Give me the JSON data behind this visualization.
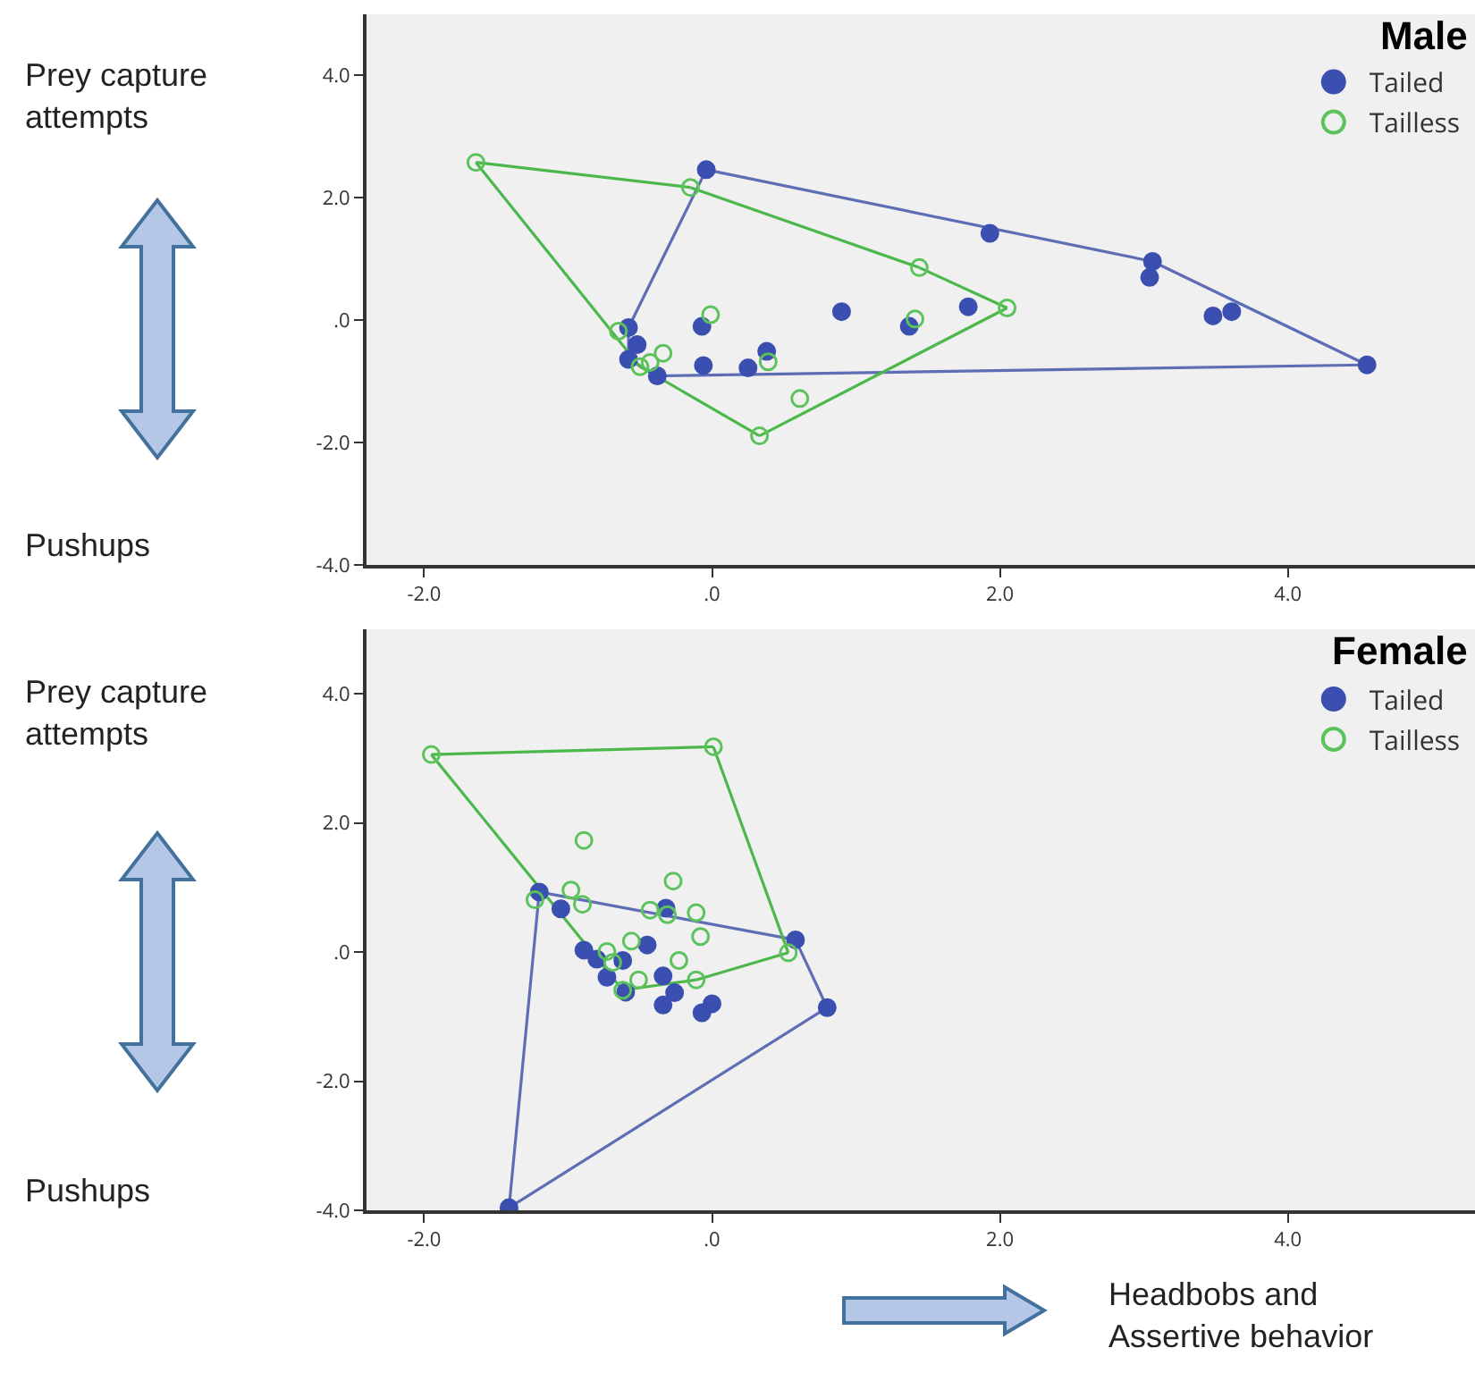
{
  "chart_data": [
    {
      "type": "scatter",
      "title": "Male",
      "annotations": [
        "Prey capture attempts",
        "Pushups"
      ],
      "xlim": [
        -2.4,
        5.3
      ],
      "ylim": [
        -4,
        5
      ],
      "xticks": [
        {
          "value": -2,
          "label": "-2.0"
        },
        {
          "value": 0,
          "label": ".0"
        },
        {
          "value": 2,
          "label": "2.0"
        },
        {
          "value": 4,
          "label": "4.0"
        }
      ],
      "yticks": [
        {
          "value": -4,
          "label": "-4.0"
        },
        {
          "value": -2,
          "label": "-2.0"
        },
        {
          "value": 0,
          "label": ".0"
        },
        {
          "value": 2,
          "label": "2.0"
        },
        {
          "value": 4,
          "label": "4.0"
        }
      ],
      "grid": false,
      "legend": "top right",
      "series": [
        {
          "type": "line",
          "color": "#5f6db5",
          "marker": "none",
          "line_style": "solid",
          "x": [
            -0.04,
            3.06
          ],
          "values": [
            2.46,
            0.96
          ]
        },
        {
          "type": "line",
          "color": "#5f6db5",
          "marker": "none",
          "line_style": "solid",
          "x": [
            3.06,
            4.55
          ],
          "values": [
            0.96,
            -0.73
          ]
        },
        {
          "type": "line",
          "color": "#5f6db5",
          "marker": "none",
          "line_style": "solid",
          "x": [
            -0.38,
            4.55
          ],
          "values": [
            -0.91,
            -0.73
          ]
        },
        {
          "type": "line",
          "color": "#5f6db5",
          "marker": "none",
          "line_style": "solid",
          "x": [
            -0.58,
            -0.38
          ],
          "values": [
            -0.64,
            -0.91
          ]
        },
        {
          "type": "line",
          "color": "#5f6db5",
          "marker": "none",
          "line_style": "solid",
          "x": [
            -0.58,
            -0.58
          ],
          "values": [
            -0.64,
            -0.12
          ]
        },
        {
          "type": "line",
          "color": "#5f6db5",
          "marker": "none",
          "line_style": "solid",
          "x": [
            -0.58,
            -0.04
          ],
          "values": [
            -0.12,
            2.46
          ]
        },
        {
          "type": "line",
          "color": "#4cb84c",
          "marker": "none",
          "line_style": "solid",
          "x": [
            -1.64,
            -0.15
          ],
          "values": [
            2.58,
            2.17
          ]
        },
        {
          "type": "line",
          "color": "#4cb84c",
          "marker": "none",
          "line_style": "solid",
          "x": [
            -0.15,
            1.44
          ],
          "values": [
            2.17,
            0.86
          ]
        },
        {
          "type": "line",
          "color": "#4cb84c",
          "marker": "none",
          "line_style": "solid",
          "x": [
            1.44,
            2.05
          ],
          "values": [
            0.86,
            0.2
          ]
        },
        {
          "type": "line",
          "color": "#4cb84c",
          "marker": "none",
          "line_style": "solid",
          "x": [
            0.33,
            2.05
          ],
          "values": [
            -1.89,
            0.2
          ]
        },
        {
          "type": "line",
          "color": "#4cb84c",
          "marker": "none",
          "line_style": "solid",
          "x": [
            -0.5,
            0.33
          ],
          "values": [
            -0.76,
            -1.89
          ]
        },
        {
          "type": "line",
          "color": "#4cb84c",
          "marker": "none",
          "line_style": "solid",
          "x": [
            -1.64,
            -0.5
          ],
          "values": [
            2.58,
            -0.76
          ]
        },
        {
          "name": "Tailed",
          "color": "#3a4fb0",
          "marker": "circle",
          "x": [
            -0.04,
            -0.58,
            -0.52,
            -0.58,
            -0.38,
            -0.07,
            -0.06,
            0.25,
            0.38,
            0.9,
            1.37,
            1.78,
            1.93,
            3.06,
            3.04,
            3.48,
            3.61,
            4.55
          ],
          "values": [
            2.46,
            -0.12,
            -0.4,
            -0.64,
            -0.91,
            -0.1,
            -0.74,
            -0.78,
            -0.51,
            0.14,
            -0.1,
            0.22,
            1.42,
            0.96,
            0.7,
            0.07,
            0.14,
            -0.73
          ]
        },
        {
          "name": "Tailless",
          "color": "#5cc25c",
          "marker": "circle-open",
          "x": [
            -1.64,
            -0.15,
            1.44,
            -0.01,
            1.41,
            -0.65,
            -0.34,
            -0.43,
            -0.5,
            0.39,
            0.61,
            0.33,
            2.05
          ],
          "values": [
            2.58,
            2.17,
            0.86,
            0.09,
            0.02,
            -0.18,
            -0.54,
            -0.69,
            -0.76,
            -0.68,
            -1.28,
            -1.89,
            0.2
          ]
        }
      ]
    },
    {
      "type": "scatter",
      "title": "Female",
      "annotations": [
        "Prey capture attempts",
        "Pushups",
        "Headbobs and Assertive behavior"
      ],
      "xlim": [
        -2.4,
        5.3
      ],
      "ylim": [
        -4,
        5
      ],
      "xticks": [
        {
          "value": -2,
          "label": "-2.0"
        },
        {
          "value": 0,
          "label": ".0"
        },
        {
          "value": 2,
          "label": "2.0"
        },
        {
          "value": 4,
          "label": "4.0"
        }
      ],
      "yticks": [
        {
          "value": -4,
          "label": "-4.0"
        },
        {
          "value": -2,
          "label": "-2.0"
        },
        {
          "value": 0,
          "label": ".0"
        },
        {
          "value": 2,
          "label": "2.0"
        },
        {
          "value": 4,
          "label": "4.0"
        }
      ],
      "grid": false,
      "legend": "top right",
      "series": [
        {
          "type": "line",
          "color": "#5f6db5",
          "marker": "none",
          "line_style": "solid",
          "x": [
            -1.2,
            0.58
          ],
          "values": [
            0.93,
            0.19
          ]
        },
        {
          "type": "line",
          "color": "#5f6db5",
          "marker": "none",
          "line_style": "solid",
          "x": [
            0.58,
            0.8
          ],
          "values": [
            0.19,
            -0.86
          ]
        },
        {
          "type": "line",
          "color": "#5f6db5",
          "marker": "none",
          "line_style": "solid",
          "x": [
            -1.41,
            0.8
          ],
          "values": [
            -3.96,
            -0.86
          ]
        },
        {
          "type": "line",
          "color": "#5f6db5",
          "marker": "none",
          "line_style": "solid",
          "x": [
            -1.41,
            -1.2
          ],
          "values": [
            -3.96,
            0.93
          ]
        },
        {
          "type": "line",
          "color": "#4cb84c",
          "marker": "none",
          "line_style": "solid",
          "x": [
            -1.95,
            0.01
          ],
          "values": [
            3.06,
            3.18
          ]
        },
        {
          "type": "line",
          "color": "#4cb84c",
          "marker": "none",
          "line_style": "solid",
          "x": [
            0.01,
            0.53
          ],
          "values": [
            3.18,
            -0.01
          ]
        },
        {
          "type": "line",
          "color": "#4cb84c",
          "marker": "none",
          "line_style": "solid",
          "x": [
            -0.11,
            0.53
          ],
          "values": [
            -0.43,
            -0.01
          ]
        },
        {
          "type": "line",
          "color": "#4cb84c",
          "marker": "none",
          "line_style": "solid",
          "x": [
            -0.62,
            -0.11
          ],
          "values": [
            -0.59,
            -0.43
          ]
        },
        {
          "type": "line",
          "color": "#4cb84c",
          "marker": "none",
          "line_style": "solid",
          "x": [
            -1.95,
            -0.62
          ],
          "values": [
            3.06,
            -0.59
          ]
        },
        {
          "name": "Tailed",
          "color": "#3a4fb0",
          "marker": "circle",
          "x": [
            -1.2,
            -1.05,
            -0.32,
            -0.45,
            -0.89,
            -0.8,
            -0.62,
            -0.73,
            -0.34,
            -0.6,
            -0.26,
            -0.34,
            0.0,
            -0.07,
            0.58,
            0.8,
            -1.41
          ],
          "values": [
            0.93,
            0.67,
            0.68,
            0.11,
            0.03,
            -0.11,
            -0.13,
            -0.39,
            -0.37,
            -0.62,
            -0.63,
            -0.82,
            -0.8,
            -0.94,
            0.19,
            -0.86,
            -3.96
          ]
        },
        {
          "name": "Tailless",
          "color": "#5cc25c",
          "marker": "circle-open",
          "x": [
            -1.95,
            0.01,
            -0.89,
            -0.27,
            -0.98,
            -1.23,
            -0.9,
            -0.43,
            -0.31,
            -0.11,
            -0.08,
            -0.56,
            -0.73,
            -0.23,
            -0.69,
            -0.51,
            -0.11,
            0.53,
            -0.62
          ],
          "values": [
            3.06,
            3.18,
            1.73,
            1.1,
            0.96,
            0.81,
            0.74,
            0.65,
            0.58,
            0.61,
            0.24,
            0.17,
            0.01,
            -0.13,
            -0.16,
            -0.43,
            -0.43,
            -0.01,
            -0.59
          ]
        }
      ]
    }
  ]
}
